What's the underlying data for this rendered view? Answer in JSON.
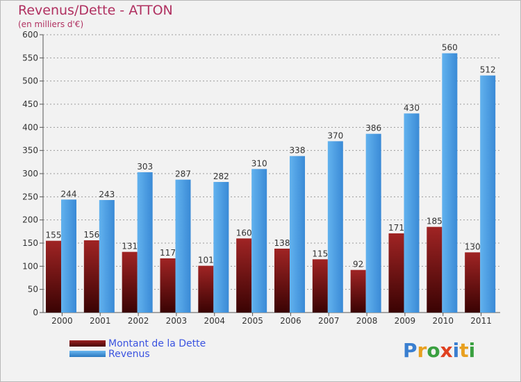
{
  "header": {
    "title": "Revenus/Dette - ATTON",
    "subtitle": "(en milliers d'€)"
  },
  "chart_data": {
    "type": "bar",
    "categories": [
      "2000",
      "2001",
      "2002",
      "2003",
      "2004",
      "2005",
      "2006",
      "2007",
      "2008",
      "2009",
      "2010",
      "2011"
    ],
    "series": [
      {
        "name": "Montant de la Dette",
        "values": [
          155,
          156,
          131,
          117,
          101,
          160,
          138,
          115,
          92,
          171,
          185,
          130
        ],
        "color": "#7a1010"
      },
      {
        "name": "Revenus",
        "values": [
          244,
          243,
          303,
          287,
          282,
          310,
          338,
          370,
          386,
          430,
          560,
          512
        ],
        "color": "#4a9de0"
      }
    ],
    "ylim": [
      0,
      600
    ],
    "yticks": [
      0,
      50,
      100,
      150,
      200,
      250,
      300,
      350,
      400,
      450,
      500,
      550,
      600
    ],
    "grid": true,
    "legend": "bottom-left",
    "data_labels": true
  },
  "legend": {
    "items": [
      {
        "label": "Montant de la Dette",
        "color": "#6a0a0a"
      },
      {
        "label": "Revenus",
        "color": "#4a9de0"
      }
    ]
  },
  "logo": {
    "letters": [
      "P",
      "r",
      "o",
      "x",
      "i",
      "t",
      "i"
    ],
    "colors": [
      "#3a7fd0",
      "#e8a020",
      "#3aa040",
      "#e04020",
      "#3a7fd0",
      "#e8a020",
      "#3aa040"
    ]
  }
}
